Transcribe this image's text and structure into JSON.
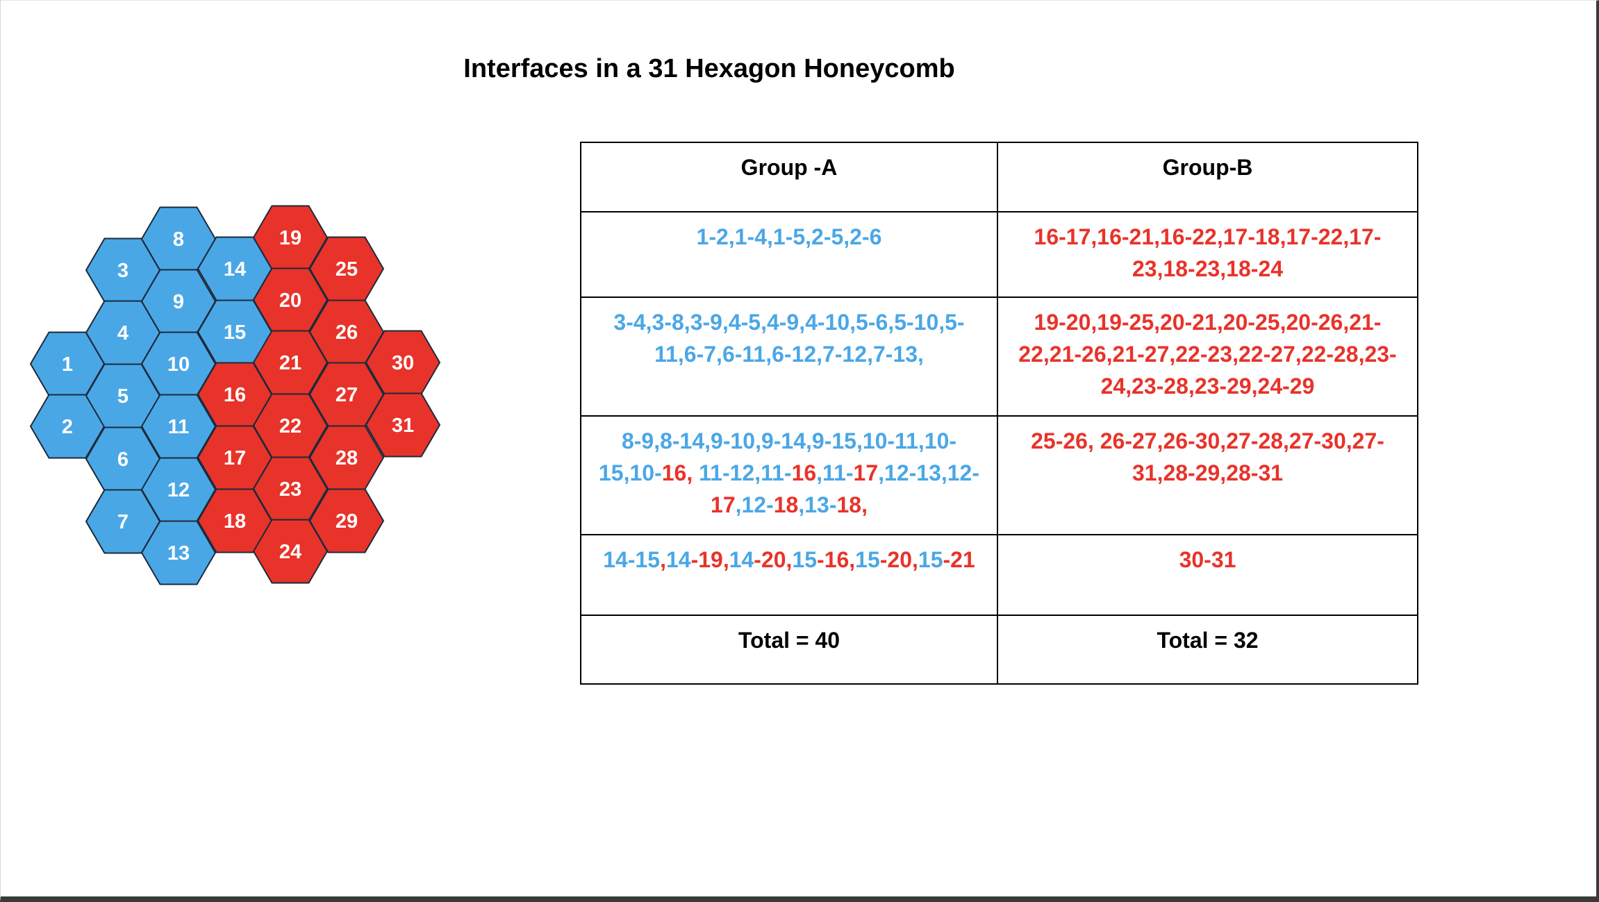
{
  "title": "Interfaces in a 31 Hexagon Honeycomb",
  "colors": {
    "group_a": "#4aa7e6",
    "group_b": "#e8332a",
    "hex_outline": "#1c2a3a"
  },
  "honeycomb": {
    "hexagons": [
      {
        "label": "1",
        "group": "A"
      },
      {
        "label": "2",
        "group": "A"
      },
      {
        "label": "3",
        "group": "A"
      },
      {
        "label": "4",
        "group": "A"
      },
      {
        "label": "5",
        "group": "A"
      },
      {
        "label": "6",
        "group": "A"
      },
      {
        "label": "7",
        "group": "A"
      },
      {
        "label": "8",
        "group": "A"
      },
      {
        "label": "9",
        "group": "A"
      },
      {
        "label": "10",
        "group": "A"
      },
      {
        "label": "11",
        "group": "A"
      },
      {
        "label": "12",
        "group": "A"
      },
      {
        "label": "13",
        "group": "A"
      },
      {
        "label": "14",
        "group": "A"
      },
      {
        "label": "15",
        "group": "A"
      },
      {
        "label": "16",
        "group": "B"
      },
      {
        "label": "17",
        "group": "B"
      },
      {
        "label": "18",
        "group": "B"
      },
      {
        "label": "19",
        "group": "B"
      },
      {
        "label": "20",
        "group": "B"
      },
      {
        "label": "21",
        "group": "B"
      },
      {
        "label": "22",
        "group": "B"
      },
      {
        "label": "23",
        "group": "B"
      },
      {
        "label": "24",
        "group": "B"
      },
      {
        "label": "25",
        "group": "B"
      },
      {
        "label": "26",
        "group": "B"
      },
      {
        "label": "27",
        "group": "B"
      },
      {
        "label": "28",
        "group": "B"
      },
      {
        "label": "29",
        "group": "B"
      },
      {
        "label": "30",
        "group": "B"
      },
      {
        "label": "31",
        "group": "B"
      }
    ]
  },
  "table": {
    "headers": [
      "Group -A",
      "Group-B"
    ],
    "rows": [
      {
        "a": [
          {
            "t": "1-2,1-4,1-5,2-5,2-6",
            "c": "blue"
          }
        ],
        "b": [
          {
            "t": "16-17,16-21,16-22,17-18,17-22,17-23,18-23,18-24",
            "c": "red"
          }
        ]
      },
      {
        "a": [
          {
            "t": "3-4,3-8,3-9,4-5,4-9,4-10,5-6,5-10,5-11,6-7,6-11,6-12,7-12,7-13,",
            "c": "blue"
          }
        ],
        "b": [
          {
            "t": "19-20,19-25,20-21,20-25,20-26,21-22,21-26,21-27,22-23,22-27,22-28,23-24,23-28,23-29,24-29",
            "c": "red"
          }
        ]
      },
      {
        "a": [
          {
            "t": "8-9,8-14,9-10,9-14,9-15,10-11,10-15,10-",
            "c": "blue"
          },
          {
            "t": "16,",
            "c": "red"
          },
          {
            "t": " 11-12,11-",
            "c": "blue"
          },
          {
            "t": "16",
            "c": "red"
          },
          {
            "t": ",11-",
            "c": "blue"
          },
          {
            "t": "17",
            "c": "red"
          },
          {
            "t": ",12-13,12-",
            "c": "blue"
          },
          {
            "t": "17",
            "c": "red"
          },
          {
            "t": ",12-",
            "c": "blue"
          },
          {
            "t": "18",
            "c": "red"
          },
          {
            "t": ",13-",
            "c": "blue"
          },
          {
            "t": "18,",
            "c": "red"
          }
        ],
        "b": [
          {
            "t": "25-26, 26-27,26-30,27-28,27-30,27-31,28-29,28-31",
            "c": "red"
          }
        ]
      },
      {
        "a": [
          {
            "t": "14-15",
            "c": "blue"
          },
          {
            "t": ",",
            "c": "red"
          },
          {
            "t": "14",
            "c": "blue"
          },
          {
            "t": "-19,",
            "c": "red"
          },
          {
            "t": "14",
            "c": "blue"
          },
          {
            "t": "-20,",
            "c": "red"
          },
          {
            "t": "15",
            "c": "blue"
          },
          {
            "t": "-16,",
            "c": "red"
          },
          {
            "t": "15",
            "c": "blue"
          },
          {
            "t": "-20,",
            "c": "red"
          },
          {
            "t": "15",
            "c": "blue"
          },
          {
            "t": "-21",
            "c": "red"
          }
        ],
        "b": [
          {
            "t": "30-31",
            "c": "red"
          }
        ]
      }
    ],
    "totals": [
      "Total = 40",
      "Total = 32"
    ]
  }
}
